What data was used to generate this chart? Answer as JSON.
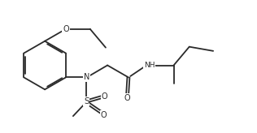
{
  "background_color": "#ffffff",
  "line_color": "#2a2a2a",
  "N_color": "#2a2a2a",
  "O_color": "#2a2a2a",
  "S_color": "#2a2a2a",
  "line_width": 1.3,
  "font_size": 7.0,
  "figsize": [
    3.16,
    1.64
  ],
  "dpi": 100,
  "xlim": [
    0.0,
    10.5
  ],
  "ylim": [
    0.0,
    5.5
  ]
}
